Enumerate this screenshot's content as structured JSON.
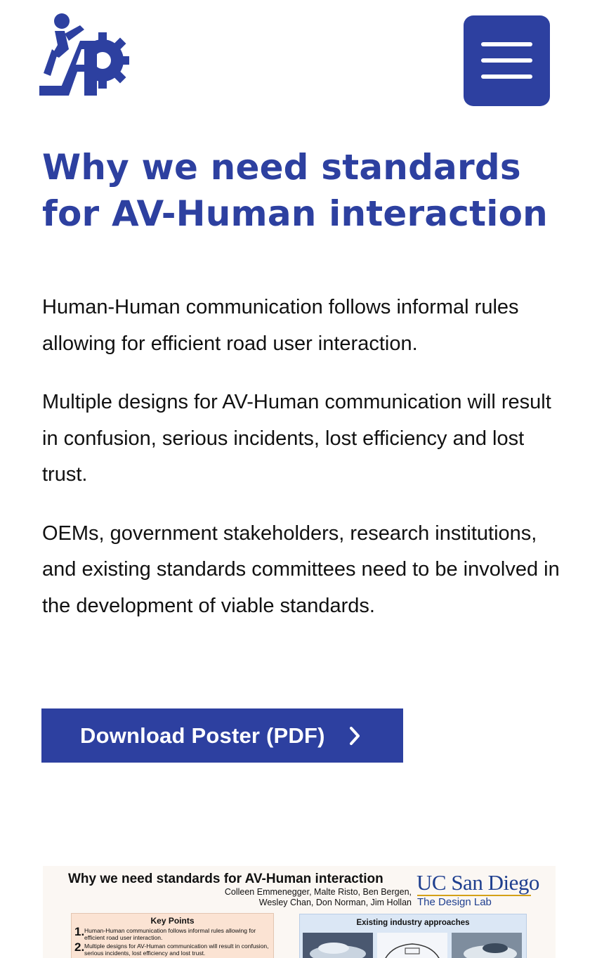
{
  "header": {
    "logo_icon": "iap-logo-icon",
    "menu_icon": "hamburger-menu-icon"
  },
  "main": {
    "title": "Why we need standards for AV-Human interaction",
    "paragraphs": [
      "Human-Human communication follows informal rules allowing for efficient road user interaction.",
      "Multiple designs for AV-Human communication will result in confusion, serious incidents, lost efficiency and lost trust.",
      "OEMs, government stakeholders, research institutions, and existing standards committees need to be involved in the development of viable standards."
    ],
    "download_button": {
      "label": "Download Poster (PDF)",
      "icon": "chevron-right-icon"
    }
  },
  "poster": {
    "title": "Why we need standards for AV-Human interaction",
    "authors_line1": "Colleen Emmenegger, Malte Risto, Ben Bergen,",
    "authors_line2": "Wesley Chan, Don Norman, Jim Hollan",
    "uc_logo": "UC San Diego",
    "lab": "The Design Lab",
    "key_points": {
      "heading": "Key Points",
      "items": [
        {
          "num": "1.",
          "text": "Human-Human communication follows informal rules allowing for efficient road user interaction."
        },
        {
          "num": "2.",
          "text": "Multiple designs for AV-Human communication will result in confusion, serious incidents, lost efficiency and lost trust."
        }
      ]
    },
    "industry": {
      "heading": "Existing industry approaches"
    }
  },
  "colors": {
    "brand": "#2d40a0",
    "text": "#111111",
    "background": "#ffffff"
  }
}
